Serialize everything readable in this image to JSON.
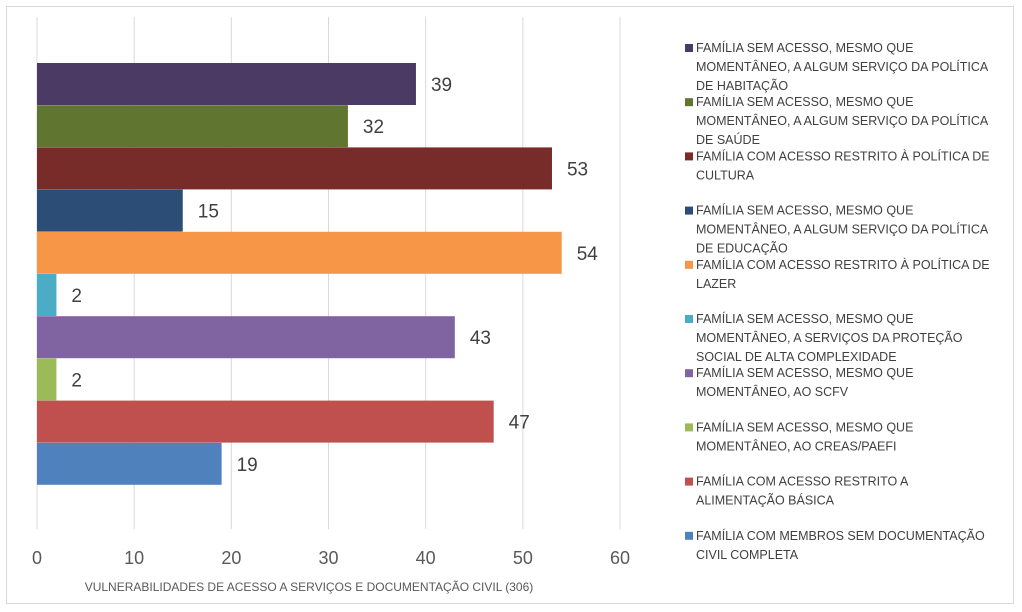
{
  "chart_data": {
    "type": "bar",
    "orientation": "horizontal",
    "xlabel": "VULNERABILIDADES DE ACESSO A SERVIÇOS E DOCUMENTAÇÃO CIVIL (306)",
    "xlim": [
      0,
      60
    ],
    "xticks": [
      0,
      10,
      20,
      30,
      40,
      50,
      60
    ],
    "grid": true,
    "legend_position": "right",
    "series": [
      {
        "name": "FAMÍLIA SEM ACESSO, MESMO QUE MOMENTÂNEO, A ALGUM SERVIÇO DA POLÍTICA DE HABITAÇÃO",
        "value": 39,
        "color": "#4b3a63",
        "legend_lines": [
          "FAMÍLIA SEM ACESSO, MESMO QUE",
          "MOMENTÂNEO, A ALGUM SERVIÇO DA POLÍTICA",
          "DE HABITAÇÃO"
        ]
      },
      {
        "name": "FAMÍLIA SEM ACESSO, MESMO QUE MOMENTÂNEO, A ALGUM SERVIÇO DA POLÍTICA DE SAÚDE",
        "value": 32,
        "color": "#5f7530",
        "legend_lines": [
          "FAMÍLIA SEM ACESSO, MESMO QUE",
          "MOMENTÂNEO, A ALGUM SERVIÇO DA POLÍTICA",
          "DE SAÚDE"
        ]
      },
      {
        "name": "FAMÍLIA COM ACESSO RESTRITO À POLÍTICA DE CULTURA",
        "value": 53,
        "color": "#772c2a",
        "legend_lines": [
          "FAMÍLIA COM ACESSO RESTRITO À POLÍTICA DE",
          "CULTURA"
        ]
      },
      {
        "name": "FAMÍLIA SEM ACESSO, MESMO QUE MOMENTÂNEO, A ALGUM SERVIÇO DA POLÍTICA DE EDUCAÇÃO",
        "value": 15,
        "color": "#2c4d75",
        "legend_lines": [
          "FAMÍLIA SEM ACESSO, MESMO QUE",
          "MOMENTÂNEO, A ALGUM SERVIÇO DA POLÍTICA",
          "DE EDUCAÇÃO"
        ]
      },
      {
        "name": "FAMÍLIA COM ACESSO RESTRITO À POLÍTICA DE LAZER",
        "value": 54,
        "color": "#f79646",
        "legend_lines": [
          "FAMÍLIA COM ACESSO RESTRITO À POLÍTICA DE",
          "LAZER"
        ]
      },
      {
        "name": "FAMÍLIA SEM ACESSO, MESMO QUE MOMENTÂNEO, A SERVIÇOS DA PROTEÇÃO SOCIAL DE ALTA COMPLEXIDADE",
        "value": 2,
        "color": "#4bacc6",
        "legend_lines": [
          "FAMÍLIA SEM ACESSO, MESMO QUE",
          "MOMENTÂNEO, A SERVIÇOS DA PROTEÇÃO",
          "SOCIAL DE ALTA COMPLEXIDADE"
        ]
      },
      {
        "name": "FAMÍLIA SEM ACESSO, MESMO QUE MOMENTÂNEO, AO SCFV",
        "value": 43,
        "color": "#8064a2",
        "legend_lines": [
          "FAMÍLIA SEM ACESSO, MESMO QUE",
          "MOMENTÂNEO, AO SCFV"
        ]
      },
      {
        "name": "FAMÍLIA SEM ACESSO, MESMO QUE MOMENTÂNEO, AO CREAS/PAEFI",
        "value": 2,
        "color": "#9bbb59",
        "legend_lines": [
          "FAMÍLIA SEM ACESSO, MESMO QUE",
          "MOMENTÂNEO, AO CREAS/PAEFI"
        ]
      },
      {
        "name": "FAMÍLIA COM ACESSO RESTRITO A ALIMENTAÇÃO BÁSICA",
        "value": 47,
        "color": "#c0504d",
        "legend_lines": [
          "FAMÍLIA COM ACESSO RESTRITO A",
          "ALIMENTAÇÃO BÁSICA"
        ]
      },
      {
        "name": "FAMÍLIA COM MEMBROS SEM DOCUMENTAÇÃO CIVIL COMPLETA",
        "value": 19,
        "color": "#4f81bd",
        "legend_lines": [
          "FAMÍLIA COM MEMBROS SEM DOCUMENTAÇÃO",
          "CIVIL COMPLETA"
        ]
      }
    ]
  }
}
